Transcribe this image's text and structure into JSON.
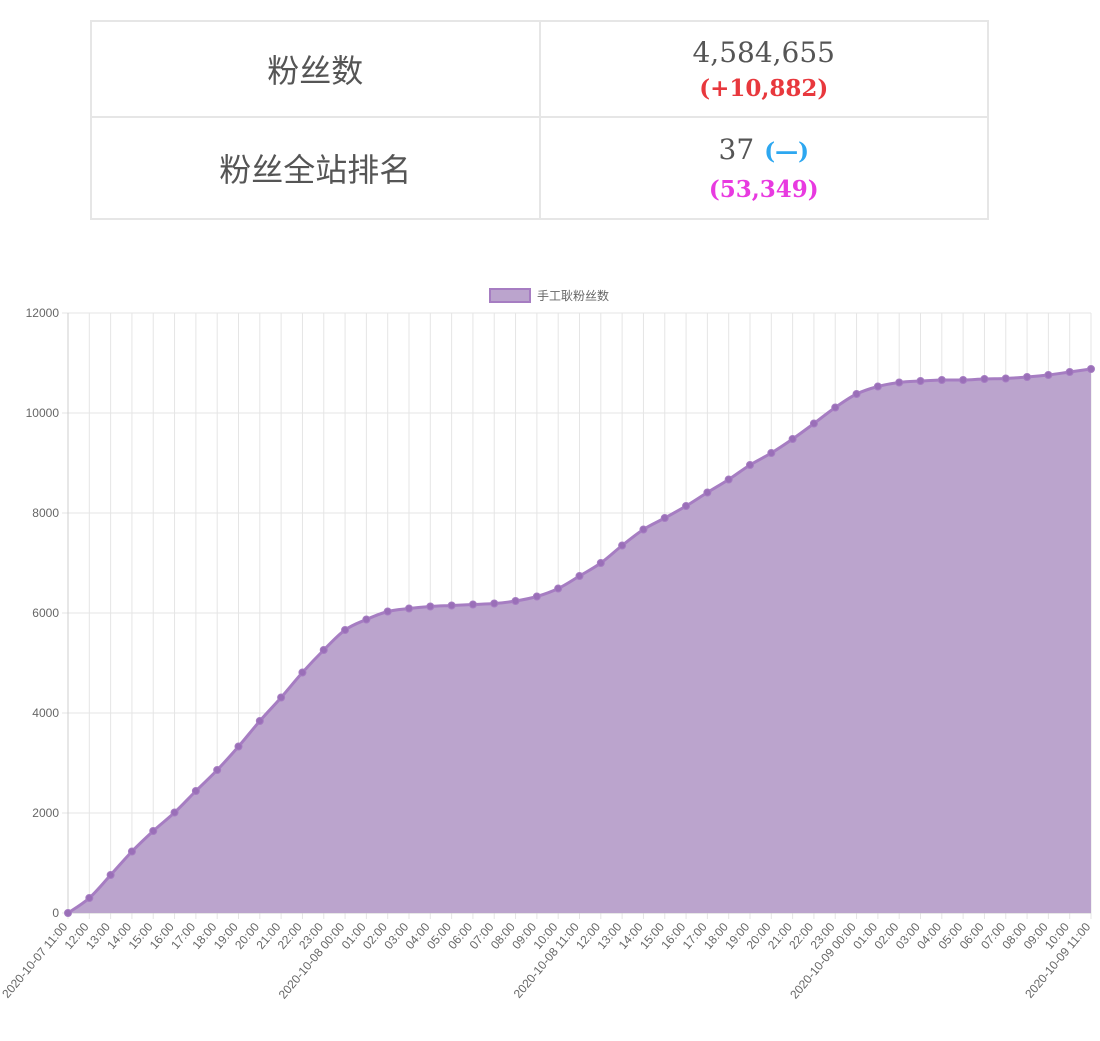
{
  "stats": {
    "followers_label": "粉丝数",
    "followers_value": "4,584,655",
    "followers_change": "(+10,882)",
    "rank_label": "粉丝全站排名",
    "rank_value": "37",
    "rank_change": "(—)",
    "rank_sub": "(53,349)"
  },
  "colors": {
    "area_fill": "#bba4cd",
    "line": "#a67dc2",
    "point": "#9a6fb8",
    "grid": "#e5e5e5",
    "followers_change": "#e8383d",
    "rank_change": "#2da7f0",
    "rank_sub": "#e83ae0"
  },
  "chart_data": {
    "type": "area",
    "legend": [
      "手工耿粉丝数"
    ],
    "legend_position": "top",
    "grid": true,
    "ylim": [
      0,
      12000
    ],
    "yticks": [
      0,
      2000,
      4000,
      6000,
      8000,
      10000,
      12000
    ],
    "categories": [
      "2020-10-07 11:00",
      "12:00",
      "13:00",
      "14:00",
      "15:00",
      "16:00",
      "17:00",
      "18:00",
      "19:00",
      "20:00",
      "21:00",
      "22:00",
      "23:00",
      "2020-10-08 00:00",
      "01:00",
      "02:00",
      "03:00",
      "04:00",
      "05:00",
      "06:00",
      "07:00",
      "08:00",
      "09:00",
      "10:00",
      "2020-10-08 11:00",
      "12:00",
      "13:00",
      "14:00",
      "15:00",
      "16:00",
      "17:00",
      "18:00",
      "19:00",
      "20:00",
      "21:00",
      "22:00",
      "23:00",
      "2020-10-09 00:00",
      "01:00",
      "02:00",
      "03:00",
      "04:00",
      "05:00",
      "06:00",
      "07:00",
      "08:00",
      "09:00",
      "10:00",
      "2020-10-09 11:00"
    ],
    "series": [
      {
        "name": "手工耿粉丝数",
        "values": [
          0,
          300,
          760,
          1230,
          1640,
          2010,
          2440,
          2860,
          3330,
          3840,
          4310,
          4810,
          5260,
          5660,
          5870,
          6030,
          6090,
          6130,
          6150,
          6170,
          6190,
          6240,
          6330,
          6490,
          6740,
          7000,
          7350,
          7670,
          7900,
          8140,
          8410,
          8670,
          8960,
          9200,
          9480,
          9790,
          10110,
          10380,
          10530,
          10610,
          10640,
          10660,
          10660,
          10680,
          10690,
          10720,
          10760,
          10820,
          10880
        ]
      }
    ]
  }
}
